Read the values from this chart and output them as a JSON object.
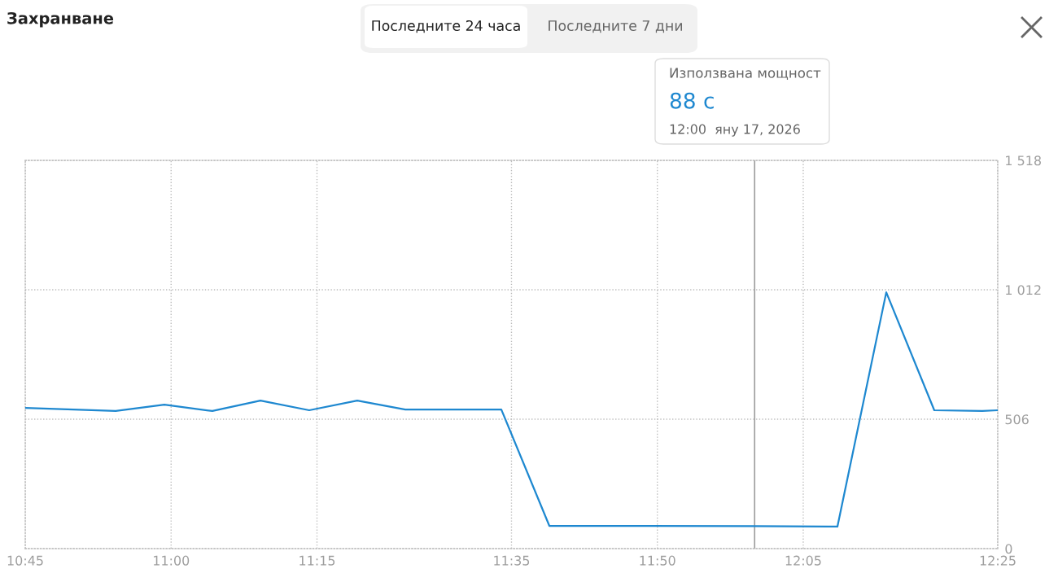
{
  "chart_data": {
    "type": "line",
    "title": "Захранване",
    "x": [
      10.75,
      10.905,
      10.9885,
      11.0708,
      11.1531,
      11.2367,
      11.319,
      11.4013,
      11.5659,
      11.6482,
      11.8141,
      12.0,
      12.1419,
      12.2256,
      12.3079,
      12.3902,
      12.4167
    ],
    "series": [
      {
        "color": "#1e88d0",
        "values": [
          550,
          538,
          563,
          538,
          579,
          541,
          579,
          544,
          544,
          89,
          89,
          88,
          86,
          1002,
          541,
          538,
          541
        ]
      }
    ],
    "xlim": [
      10.75,
      12.4167
    ],
    "xticks": [
      {
        "value": 10.75,
        "label": "10:45"
      },
      {
        "value": 11.0,
        "label": "11:00"
      },
      {
        "value": 11.25,
        "label": "11:15"
      },
      {
        "value": 11.5833,
        "label": "11:35"
      },
      {
        "value": 11.8333,
        "label": "11:50"
      },
      {
        "value": 12.0833,
        "label": "12:05"
      },
      {
        "value": 12.4167,
        "label": "12:25"
      }
    ],
    "ylim": [
      0,
      1518
    ],
    "yticks": [
      0,
      506,
      {
        "value": 1012,
        "label": "1 012"
      },
      {
        "value": 1518,
        "label": "1 518"
      }
    ],
    "grid": true,
    "legend": false,
    "marker": "none",
    "line_style": "solid",
    "ref_lines": [
      {
        "axis": "x",
        "value": 12.0,
        "color": "#9e9e9e",
        "line_style": "solid"
      }
    ],
    "annotations": [
      "Последните 24 часа",
      "Последните 7 дни",
      "Използвана мощност",
      "88 с",
      "12:00  яну 17, 2026"
    ]
  }
}
